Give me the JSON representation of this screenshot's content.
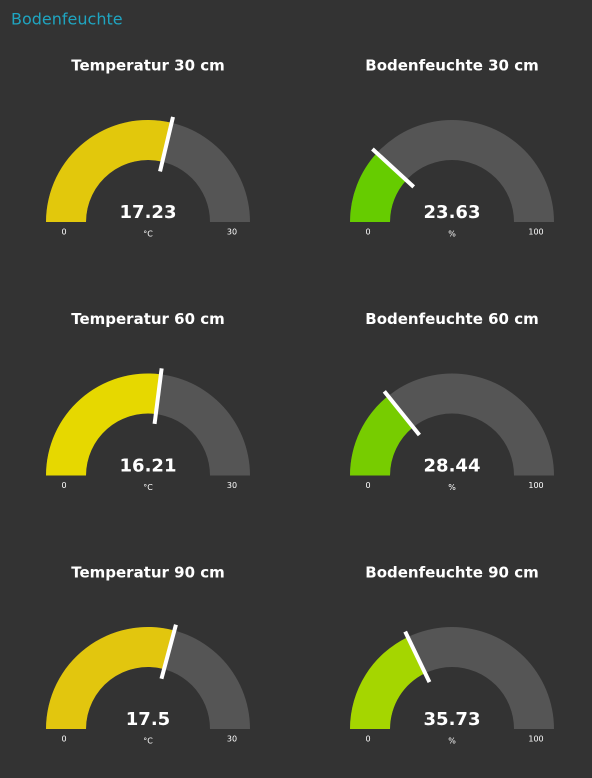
{
  "header": {
    "title": "Bodenfeuchte"
  },
  "gauges": [
    {
      "title": "Temperatur 30 cm",
      "value": 17.23,
      "unit": "°C",
      "min": 0,
      "max": 30,
      "color": "#e2c80c"
    },
    {
      "title": "Bodenfeuchte 30 cm",
      "value": 23.63,
      "unit": "%",
      "min": 0,
      "max": 100,
      "color": "#66cc00"
    },
    {
      "title": "Temperatur 60 cm",
      "value": 16.21,
      "unit": "°C",
      "min": 0,
      "max": 30,
      "color": "#e6d800"
    },
    {
      "title": "Bodenfeuchte 60 cm",
      "value": 28.44,
      "unit": "%",
      "min": 0,
      "max": 100,
      "color": "#77cc00"
    },
    {
      "title": "Temperatur 90 cm",
      "value": 17.5,
      "unit": "°C",
      "min": 0,
      "max": 30,
      "color": "#e2c60e"
    },
    {
      "title": "Bodenfeuchte 90 cm",
      "value": 35.73,
      "unit": "%",
      "min": 0,
      "max": 100,
      "color": "#a5d600"
    }
  ]
}
